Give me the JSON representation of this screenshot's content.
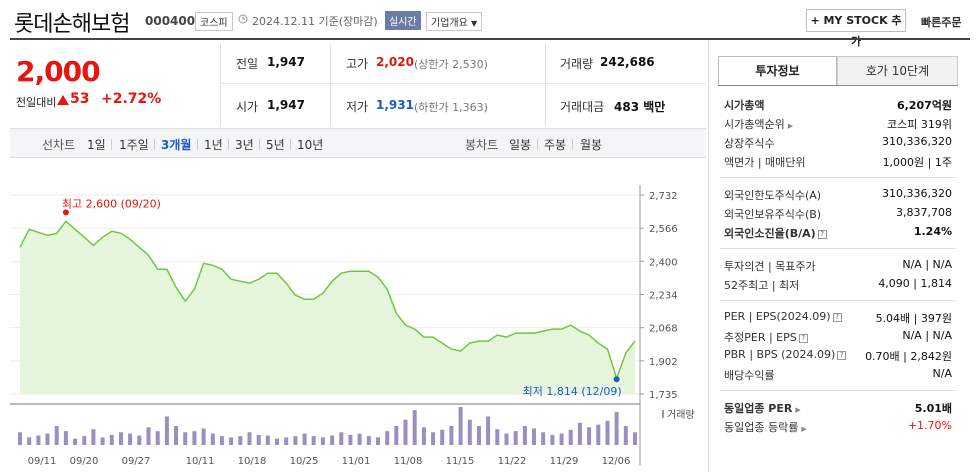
{
  "header": {
    "name": "롯데손해보험",
    "code": "000400",
    "market": "코스피",
    "date": "2024.12.11 기준(장마감)",
    "realtime": "실시간",
    "company_info": "기업개요",
    "mystock": "+ MY STOCK 추가",
    "quick_order": "빠른주문"
  },
  "price": {
    "current": "2,000",
    "prev_label": "전일대비",
    "change": "53",
    "change_pct": "+2.72%"
  },
  "summary": {
    "prev_close_label": "전일",
    "prev_close": "1,947",
    "high_label": "고가",
    "high": "2,020",
    "upper_limit": "(상한가 2,530)",
    "volume_label": "거래량",
    "volume": "242,686",
    "open_label": "시가",
    "open": "1,947",
    "low_label": "저가",
    "low": "1,931",
    "lower_limit": "(하한가 1,363)",
    "amount_label": "거래대금",
    "amount": "483 백만"
  },
  "toolbar": {
    "line_label": "선차트",
    "periods": [
      "1일",
      "1주일",
      "3개월",
      "1년",
      "3년",
      "5년",
      "10년"
    ],
    "selected": "3개월",
    "candle_label": "봉차트",
    "candles": [
      "일봉",
      "주봉",
      "월봉"
    ]
  },
  "chart_data": {
    "type": "area",
    "y_ticks": [
      "2,732",
      "2,566",
      "2,400",
      "2,234",
      "2,068",
      "1,902",
      "1,735"
    ],
    "ylim": [
      1735,
      2732
    ],
    "x_ticks": [
      "09/11",
      "09/20",
      "09/27",
      "10/11",
      "10/18",
      "10/25",
      "11/01",
      "11/08",
      "11/15",
      "11/22",
      "11/29",
      "12/06"
    ],
    "values": [
      2470,
      2560,
      2545,
      2530,
      2540,
      2600,
      2560,
      2520,
      2480,
      2520,
      2550,
      2540,
      2510,
      2470,
      2430,
      2360,
      2360,
      2270,
      2200,
      2260,
      2390,
      2380,
      2360,
      2310,
      2300,
      2290,
      2310,
      2340,
      2340,
      2290,
      2230,
      2210,
      2210,
      2240,
      2300,
      2340,
      2350,
      2350,
      2350,
      2320,
      2260,
      2140,
      2080,
      2060,
      2020,
      2020,
      1990,
      1960,
      1950,
      1990,
      2000,
      2000,
      2030,
      2020,
      2040,
      2040,
      2040,
      2050,
      2060,
      2060,
      2080,
      2050,
      2030,
      1990,
      1960,
      1814,
      1940,
      2000
    ],
    "volume": [
      20,
      12,
      15,
      18,
      30,
      22,
      10,
      14,
      25,
      12,
      16,
      20,
      18,
      15,
      28,
      22,
      45,
      30,
      20,
      22,
      26,
      18,
      14,
      12,
      14,
      20,
      16,
      15,
      10,
      12,
      14,
      18,
      14,
      12,
      15,
      20,
      16,
      18,
      14,
      12,
      22,
      30,
      40,
      55,
      28,
      20,
      24,
      30,
      60,
      40,
      30,
      45,
      25,
      18,
      22,
      30,
      26,
      20,
      16,
      18,
      24,
      35,
      28,
      32,
      38,
      52,
      30,
      20
    ],
    "max_label": "최고 2,600 (09/20)",
    "min_label": "최저 1,814 (12/09)",
    "volume_label": "거래량",
    "line_color": "#6dc93d",
    "fill_color": "#e6f6dc",
    "volume_color": "#9b8ec2"
  },
  "invest": {
    "tab1": "투자정보",
    "tab2": "호가 10단계",
    "rows": [
      {
        "label": "시가총액",
        "value": "6,207억원"
      },
      {
        "label": "시가총액순위",
        "value": "코스피 319위"
      },
      {
        "label": "상장주식수",
        "value": "310,336,320"
      },
      {
        "label": "액면가 | 매매단위",
        "value": "1,000원 | 1주"
      },
      {
        "label": "외국인한도주식수(A)",
        "value": "310,336,320"
      },
      {
        "label": "외국인보유주식수(B)",
        "value": "3,837,708"
      },
      {
        "label": "외국인소진율(B/A)",
        "value": "1.24%"
      },
      {
        "label": "투자의견 | 목표주가",
        "value": "N/A | N/A"
      },
      {
        "label": "52주최고 | 최저",
        "value": "4,090 | 1,814"
      },
      {
        "label": "PER | EPS(2024.09)",
        "value": "5.04배 | 397원"
      },
      {
        "label": "추정PER | EPS",
        "value": "N/A | N/A"
      },
      {
        "label": "PBR | BPS (2024.09)",
        "value": "0.70배 | 2,842원"
      },
      {
        "label": "배당수익률",
        "value": "N/A"
      },
      {
        "label": "동일업종 PER",
        "value": "5.01배"
      },
      {
        "label": "동일업종 등락률",
        "value": "+1.70%"
      }
    ]
  }
}
